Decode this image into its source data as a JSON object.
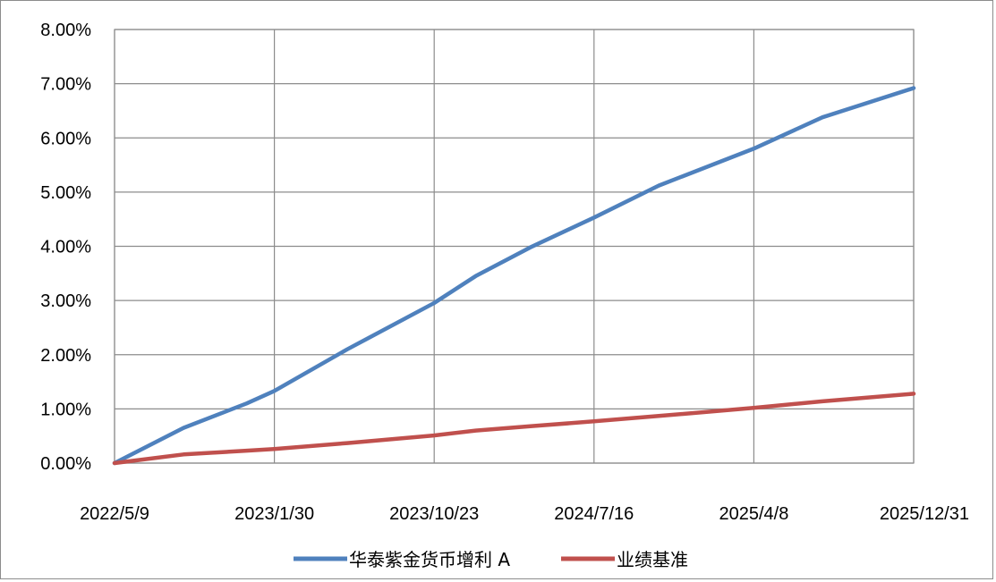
{
  "chart_data": {
    "type": "line",
    "title": "",
    "xlabel": "",
    "ylabel": "",
    "x_tick_labels": [
      "2022/5/9",
      "2023/1/30",
      "2023/10/23",
      "2024/7/16",
      "2025/4/8",
      "2025/12/31"
    ],
    "y_tick_labels": [
      "0.00%",
      "1.00%",
      "2.00%",
      "3.00%",
      "4.00%",
      "5.00%",
      "6.00%",
      "7.00%",
      "8.00%"
    ],
    "ylim": [
      0,
      0.08
    ],
    "grid": true,
    "legend_position": "bottom",
    "x": [
      "2022/5/9",
      "2022/9/1",
      "2022/12/15",
      "2023/1/30",
      "2023/6/1",
      "2023/10/23",
      "2024/1/1",
      "2024/4/1",
      "2024/7/16",
      "2024/11/1",
      "2025/4/8",
      "2025/8/1",
      "2025/12/31"
    ],
    "series": [
      {
        "name": "华泰紫金货币增利 A",
        "color": "#4f81bd",
        "values": [
          0.0,
          0.0065,
          0.011,
          0.0133,
          0.021,
          0.0295,
          0.0345,
          0.0398,
          0.0453,
          0.0512,
          0.058,
          0.0638,
          0.0692
        ]
      },
      {
        "name": "业绩基准",
        "color": "#c0504d",
        "values": [
          0.0,
          0.0016,
          0.0023,
          0.0026,
          0.0037,
          0.0051,
          0.006,
          0.0068,
          0.0077,
          0.0087,
          0.0102,
          0.0114,
          0.0128
        ]
      }
    ]
  }
}
